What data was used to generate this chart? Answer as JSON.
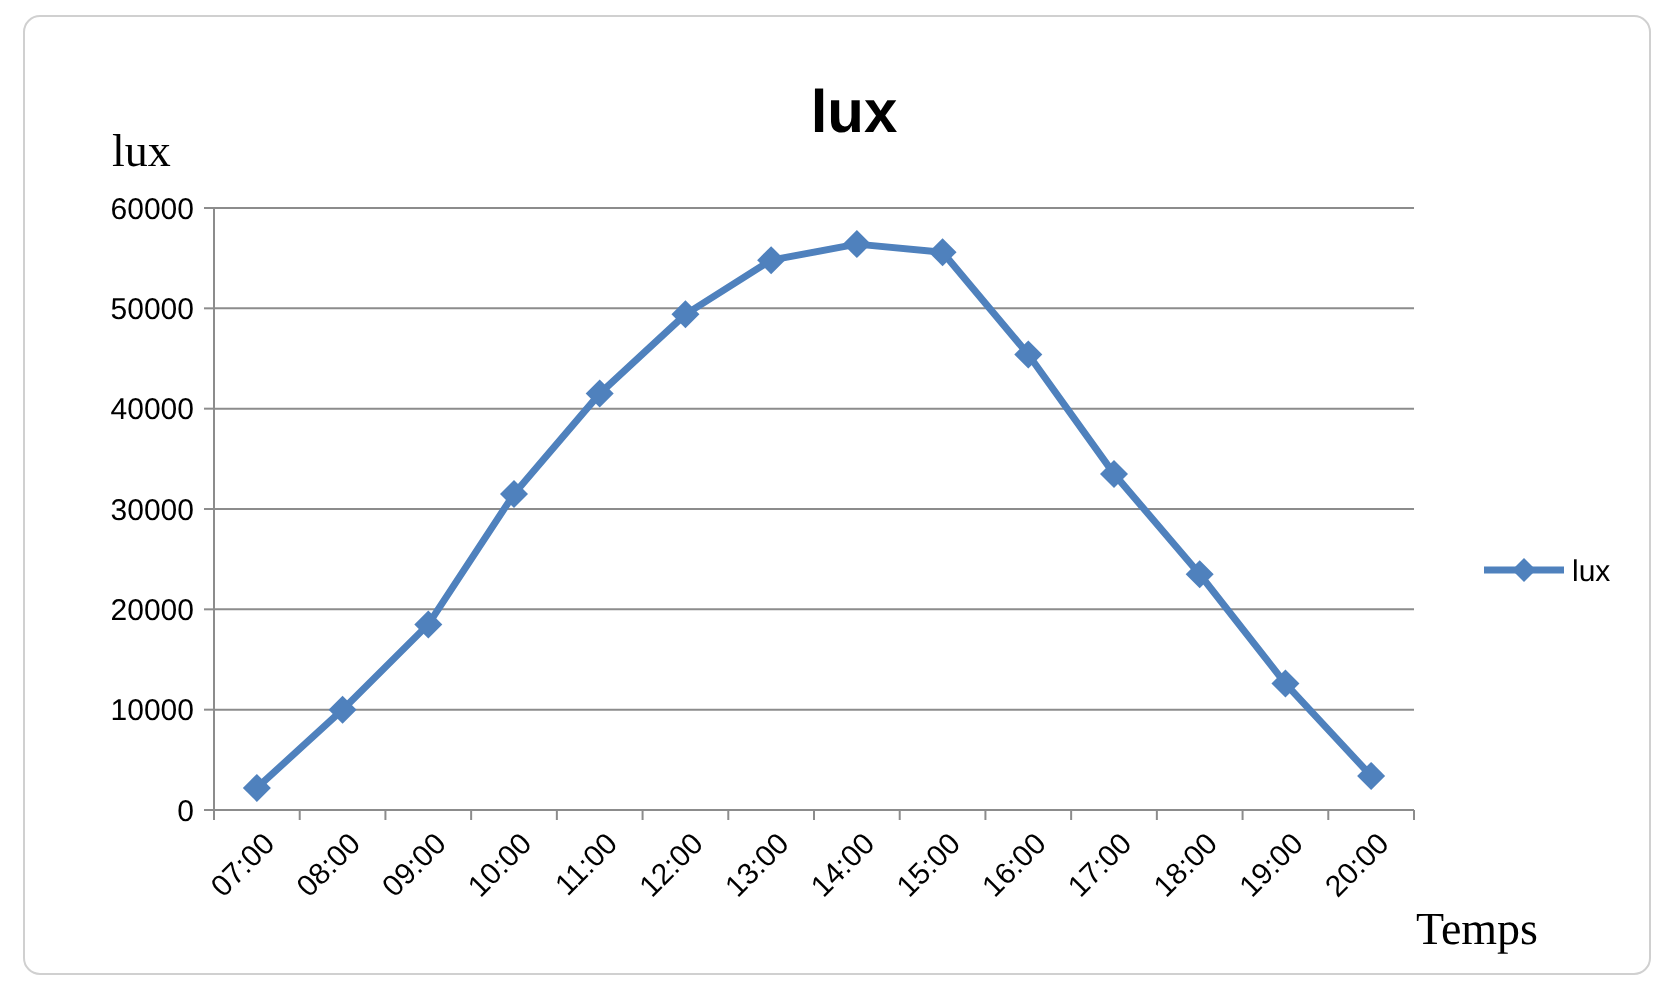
{
  "chart_data": {
    "type": "line",
    "title": "lux",
    "ylabel": "lux",
    "xlabel": "Temps",
    "categories": [
      "07:00",
      "08:00",
      "09:00",
      "10:00",
      "11:00",
      "12:00",
      "13:00",
      "14:00",
      "15:00",
      "16:00",
      "17:00",
      "18:00",
      "19:00",
      "20:00"
    ],
    "series": [
      {
        "name": "lux",
        "color": "#4f81bd",
        "values": [
          2200,
          10000,
          18500,
          31500,
          41500,
          49400,
          54800,
          56400,
          55600,
          45400,
          33500,
          23500,
          12600,
          3400
        ]
      }
    ],
    "ylim": [
      0,
      60000
    ],
    "yticks": [
      0,
      10000,
      20000,
      30000,
      40000,
      50000,
      60000
    ],
    "grid": "y",
    "legend": "right",
    "marker": "diamond",
    "line_style": "solid"
  }
}
